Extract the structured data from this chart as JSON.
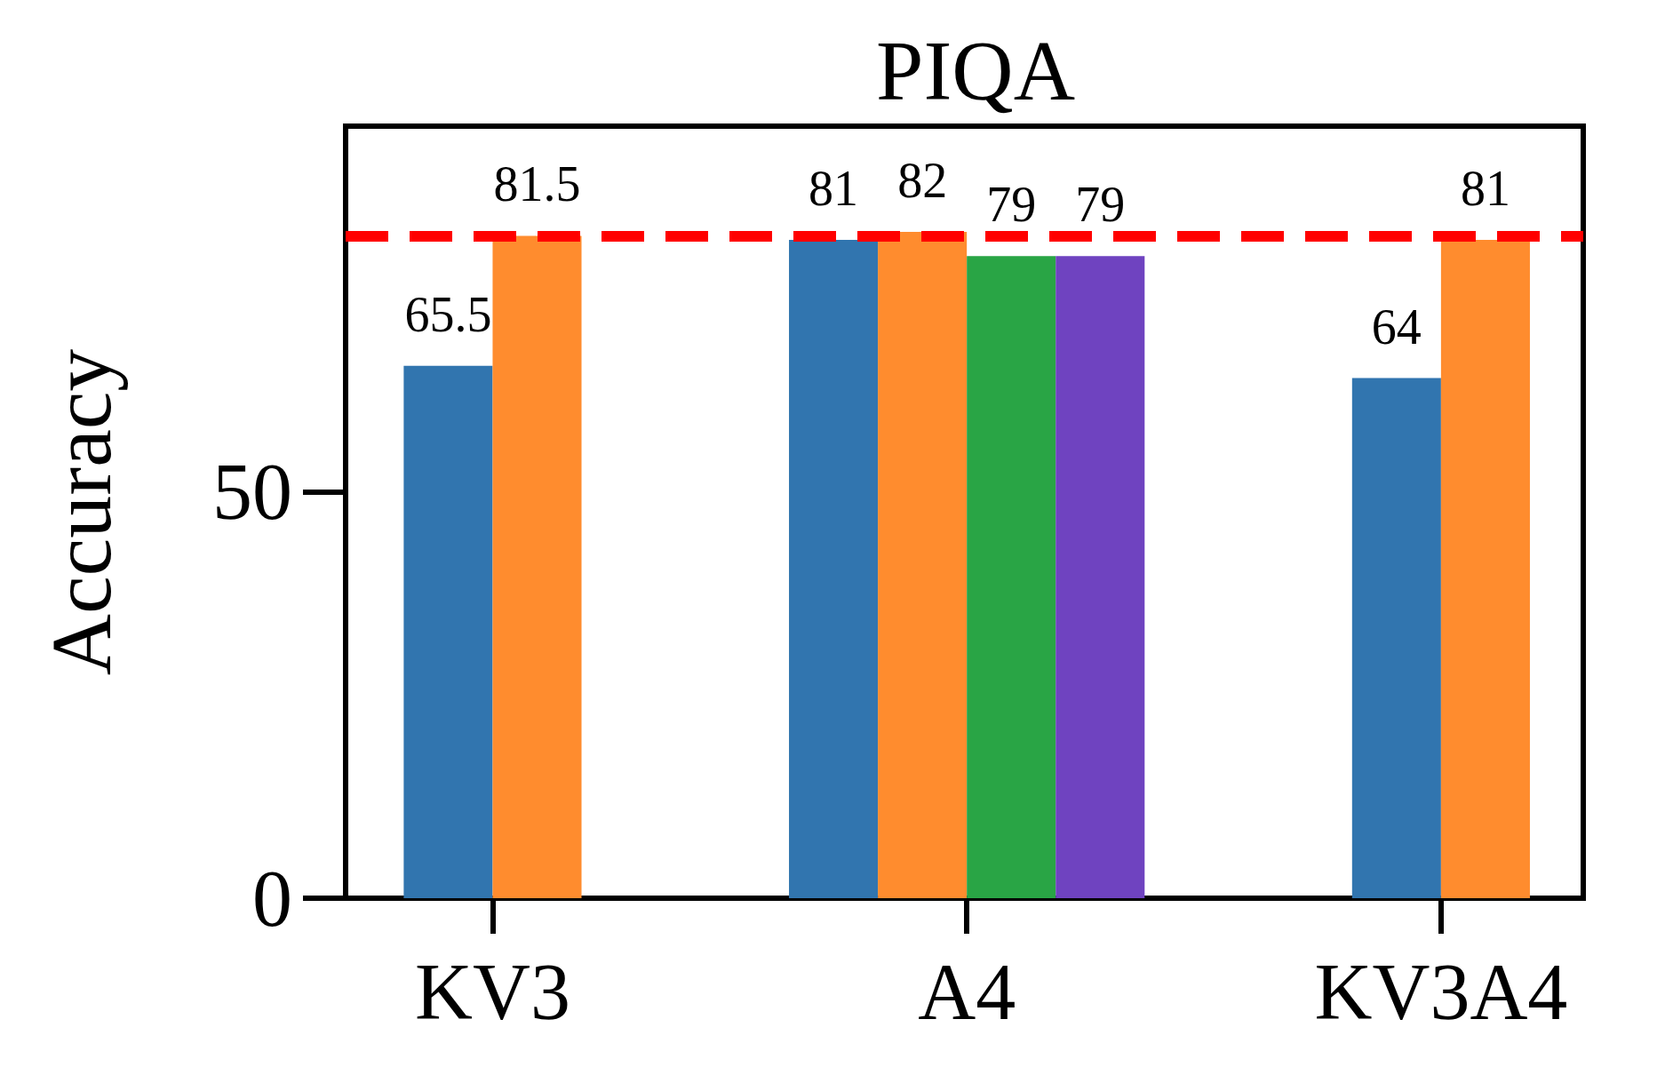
{
  "chart_data": {
    "type": "bar",
    "title": "PIQA",
    "ylabel": "Accuracy",
    "categories": [
      "KV3",
      "A4",
      "KV3A4"
    ],
    "series": [
      {
        "color": "#3175af",
        "values": [
          65.5,
          81,
          64
        ]
      },
      {
        "color": "#ff8c2e",
        "values": [
          81.5,
          82,
          81
        ]
      },
      {
        "color": "#29a545",
        "values": [
          null,
          79,
          null
        ]
      },
      {
        "color": "#6f43c0",
        "values": [
          null,
          79,
          null
        ]
      }
    ],
    "ylim": [
      0,
      95
    ],
    "yticks": [
      0,
      50
    ],
    "data_labels": true,
    "grid": false,
    "ref_lines": [
      {
        "axis": "y",
        "value": 81.5,
        "color": "#ff0000",
        "line_style": "dashed"
      }
    ]
  }
}
